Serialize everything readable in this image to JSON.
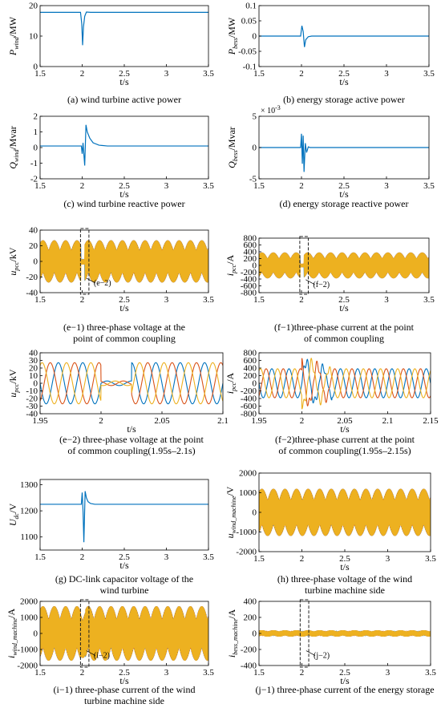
{
  "colors": {
    "blue": "#0072BD",
    "orange": "#D95319",
    "yellow": "#EDB120",
    "axis": "#000000"
  },
  "chart_data": [
    {
      "id": "a",
      "type": "line",
      "caption": "(a) wind turbine active power",
      "ylabel_base": "P",
      "ylabel_sub": "wind",
      "ylabel_unit": "/MW",
      "xlabel": "t/s",
      "xlim": [
        1.5,
        3.5
      ],
      "ylim": [
        0,
        20
      ],
      "xticks": [
        "1.5",
        "2",
        "2.5",
        "3",
        "3.5"
      ],
      "yticks": [
        "0",
        "10",
        "20"
      ],
      "series": [
        {
          "x": [
            1.5,
            1.98,
            1.995,
            2.005,
            2.015,
            2.03,
            2.05,
            2.1,
            3.5
          ],
          "y": [
            17.8,
            17.8,
            14,
            7,
            13,
            16.5,
            17.9,
            17.8,
            17.8
          ],
          "color": "blue"
        }
      ]
    },
    {
      "id": "b",
      "type": "line",
      "caption": "(b) energy storage active power",
      "ylabel_base": "P",
      "ylabel_sub": "bess",
      "ylabel_unit": "/MW",
      "xlabel": "t/s",
      "xlim": [
        1.5,
        3.5
      ],
      "ylim": [
        -0.1,
        0.1
      ],
      "xticks": [
        "1.5",
        "2",
        "2.5",
        "3",
        "3.5"
      ],
      "yticks": [
        "-0.1",
        "-0.05",
        "0",
        "0.05",
        "0.1"
      ],
      "series": [
        {
          "x": [
            1.5,
            1.99,
            2.005,
            2.02,
            2.035,
            2.05,
            2.08,
            2.12,
            3.5
          ],
          "y": [
            0,
            0,
            0.034,
            0.015,
            -0.036,
            -0.012,
            -0.002,
            0,
            0
          ],
          "color": "blue"
        }
      ]
    },
    {
      "id": "c",
      "type": "line",
      "caption": "(c)  wind turbine reactive power",
      "ylabel_base": "Q",
      "ylabel_sub": "wind",
      "ylabel_unit": "/Mvar",
      "xlabel": "t/s",
      "xlim": [
        1.5,
        3.5
      ],
      "ylim": [
        -2,
        2
      ],
      "xticks": [
        "1.5",
        "2",
        "2.5",
        "3",
        "3.5"
      ],
      "yticks": [
        "-2",
        "-1",
        "0",
        "1",
        "2"
      ],
      "series": [
        {
          "x": [
            1.5,
            1.99,
            2.0,
            2.01,
            2.03,
            2.045,
            2.06,
            2.09,
            2.13,
            2.2,
            2.3,
            3.5
          ],
          "y": [
            0.1,
            0.1,
            -0.4,
            0.3,
            -1.15,
            1.45,
            1.0,
            0.6,
            0.3,
            0.15,
            0.1,
            0.1
          ],
          "color": "blue"
        }
      ]
    },
    {
      "id": "d",
      "type": "line",
      "caption": "(d) energy storage reactive power",
      "ylabel_base": "Q",
      "ylabel_sub": "bess",
      "ylabel_unit": "/Mvar",
      "xlabel": "t/s",
      "exponent": "× 10",
      "exponent_power": "-3",
      "xlim": [
        1.5,
        3.5
      ],
      "ylim": [
        -5,
        5
      ],
      "xticks": [
        "1.5",
        "2",
        "2.5",
        "3",
        "3.5"
      ],
      "yticks": [
        "-5",
        "0",
        "5"
      ],
      "series": [
        {
          "x": [
            1.5,
            1.99,
            2.0,
            2.01,
            2.02,
            2.03,
            2.045,
            2.06,
            2.08,
            2.1,
            3.5
          ],
          "y": [
            0,
            0,
            2.2,
            -2.6,
            1.9,
            -3.9,
            0.7,
            -0.8,
            0.1,
            0,
            0
          ],
          "color": "blue"
        }
      ]
    },
    {
      "id": "e1",
      "type": "line",
      "caption": "(e−1) three-phase voltage at the",
      "caption2": "point of common coupling",
      "ylabel_base": "u",
      "ylabel_sub": "pcc",
      "ylabel_unit": "/kV",
      "xlabel": "t/s",
      "xlim": [
        1.5,
        3.5
      ],
      "ylim": [
        -40,
        40
      ],
      "xticks": [
        "1.5",
        "2",
        "2.5",
        "3",
        "3.5"
      ],
      "yticks": [
        "-40",
        "-20",
        "0",
        "20",
        "40"
      ],
      "annotation": "(e−2)",
      "amplitude": 27
    },
    {
      "id": "f1",
      "type": "line",
      "caption": "(f−1)three-phase current at the point",
      "caption2": "of common coupling",
      "ylabel_base": "i",
      "ylabel_sub": "pcc",
      "ylabel_unit": "/A",
      "xlabel": "t/s",
      "xlim": [
        1.5,
        3.5
      ],
      "ylim": [
        -800,
        800
      ],
      "xticks": [
        "1.5",
        "2",
        "2.5",
        "3",
        "3.5"
      ],
      "yticks": [
        "-800",
        "-600",
        "-400",
        "-200",
        "0",
        "200",
        "400",
        "600",
        "800"
      ],
      "annotation": "(f−2)",
      "amplitude": 380
    },
    {
      "id": "e2",
      "type": "line",
      "caption": "(e−2) three-phase voltage at the point",
      "caption2": "of common coupling(1.95s–2.1s)",
      "ylabel_base": "u",
      "ylabel_sub": "pcc",
      "ylabel_unit": "/kV",
      "xlabel": "t/s",
      "xlim": [
        1.95,
        2.1
      ],
      "ylim": [
        -40,
        40
      ],
      "xticks": [
        "1.95",
        "2",
        "2.05",
        "2.1"
      ],
      "yticks": [
        "-40",
        "-30",
        "-20",
        "-10",
        "0",
        "10",
        "20",
        "30",
        "40"
      ],
      "amplitude": 27,
      "frequency_hz": 50,
      "dip_start": 2.0,
      "dip_end": 2.025,
      "dip_amplitude": 3
    },
    {
      "id": "f2",
      "type": "line",
      "caption": "(f−2)three-phase current at the point",
      "caption2": "of common coupling(1.95s–2.15s)",
      "ylabel_base": "i",
      "ylabel_sub": "pcc",
      "ylabel_unit": "/A",
      "xlabel": "t/s",
      "xlim": [
        1.95,
        2.15
      ],
      "ylim": [
        -800,
        800
      ],
      "xticks": [
        "1.95",
        "2",
        "2.05",
        "2.1",
        "2.15"
      ],
      "yticks": [
        "-800",
        "-600",
        "-400",
        "-200",
        "0",
        "200",
        "400",
        "600",
        "800"
      ],
      "amplitude": 380,
      "frequency_hz": 50,
      "dip_start": 2.0
    },
    {
      "id": "g",
      "type": "line",
      "caption": "(g) DC-link capacitor voltage of the",
      "caption2": "wind turbine",
      "ylabel_base": "U",
      "ylabel_sub": "dc",
      "ylabel_unit": "/V",
      "xlabel": "t/s",
      "xlim": [
        1.5,
        3.5
      ],
      "ylim": [
        1050,
        1320
      ],
      "xticks": [
        "1.5",
        "2",
        "2.5",
        "3",
        "3.5"
      ],
      "yticks": [
        "1100",
        "1200",
        "1300"
      ],
      "series": [
        {
          "x": [
            1.5,
            1.99,
            2.0,
            2.01,
            2.02,
            2.035,
            2.05,
            2.07,
            2.1,
            2.15,
            2.3,
            3.5
          ],
          "y": [
            1225,
            1225,
            1270,
            1200,
            1080,
            1275,
            1250,
            1235,
            1228,
            1225,
            1225,
            1225
          ],
          "color": "blue"
        }
      ]
    },
    {
      "id": "h",
      "type": "line",
      "caption": "(h) three-phase voltage of the wind",
      "caption2": "turbine machine side",
      "ylabel_base": "u",
      "ylabel_sub": "wind_machine",
      "ylabel_unit": "/V",
      "xlabel": "t/s",
      "xlim": [
        1.5,
        3.5
      ],
      "ylim": [
        -2000,
        2000
      ],
      "xticks": [
        "1.5",
        "2",
        "2.5",
        "3",
        "3.5"
      ],
      "yticks": [
        "-2000",
        "-1000",
        "0",
        "1000",
        "2000"
      ],
      "amplitude": 1200
    },
    {
      "id": "i1",
      "type": "line",
      "caption": "(i−1) three-phase current of the wind",
      "caption2": "turbine machine side",
      "ylabel_base": "i",
      "ylabel_sub": "wind_machine",
      "ylabel_unit": "/A",
      "xlabel": "t/s",
      "xlim": [
        1.5,
        3.5
      ],
      "ylim": [
        -2000,
        2000
      ],
      "xticks": [
        "1.5",
        "2",
        "2.5",
        "3",
        "3.5"
      ],
      "yticks": [
        "-2000",
        "-1000",
        "0",
        "1000",
        "2000"
      ],
      "annotation": "(i−2)",
      "amplitude": 1700
    },
    {
      "id": "j1",
      "type": "line",
      "caption": "(j−1) three-phase current of the energy storage",
      "ylabel_base": "i",
      "ylabel_sub": "bess_machine",
      "ylabel_unit": "/A",
      "xlabel": "t/s",
      "xlim": [
        1.5,
        3.5
      ],
      "ylim": [
        -400,
        400
      ],
      "xticks": [
        "1.5",
        "2",
        "2.5",
        "3",
        "3.5"
      ],
      "yticks": [
        "-400",
        "-200",
        "0",
        "200",
        "400"
      ],
      "annotation": "(j−2)",
      "amplitude": 40
    }
  ]
}
